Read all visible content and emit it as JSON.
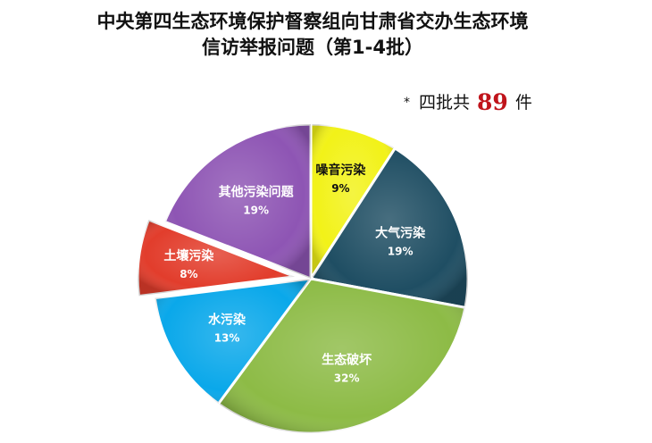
{
  "chart_data": {
    "type": "pie",
    "title_line1": "中央第四生态环境保护督察组向甘肃省交办生态环境",
    "title_line2": "信访举报问题（第1-4批）",
    "note_star": "*",
    "note_prefix": "四批共",
    "note_total": "89",
    "note_suffix": "件",
    "slices": [
      {
        "name": "噪音污染",
        "pct_label": "9%",
        "value": 9,
        "color": "#f2f218",
        "text_color": "#111111"
      },
      {
        "name": "大气污染",
        "pct_label": "19%",
        "value": 19,
        "color": "#1f4e63",
        "text_color": "#ffffff"
      },
      {
        "name": "生态破坏",
        "pct_label": "32%",
        "value": 32,
        "color": "#8dbb46",
        "text_color": "#ffffff"
      },
      {
        "name": "水污染",
        "pct_label": "13%",
        "value": 13,
        "color": "#0aa8ea",
        "text_color": "#ffffff"
      },
      {
        "name": "土壤污染",
        "pct_label": "8%",
        "value": 8,
        "color": "#e23d2c",
        "text_color": "#ffffff",
        "exploded": true
      },
      {
        "name": "其他污染问题",
        "pct_label": "19%",
        "value": 19,
        "color": "#8e55b4",
        "text_color": "#ffffff"
      }
    ]
  }
}
